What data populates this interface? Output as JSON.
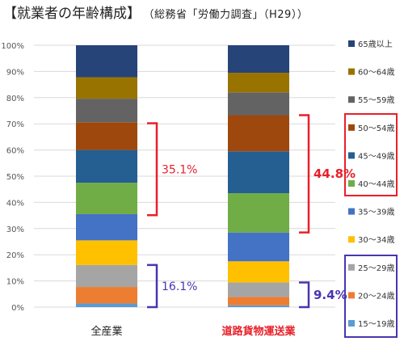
{
  "header": {
    "title": "【就業者の年齢構成】",
    "source": "（総務省「労働力調査」（H29））"
  },
  "colors": {
    "bracket_red": "#e8202a",
    "bracket_blue": "#4a35b0",
    "axis_text": "#555555",
    "grid": "#d9d9d9"
  },
  "chart_data": {
    "type": "bar",
    "stacked": true,
    "percent_scale": true,
    "categories": [
      "全産業",
      "道路貨物運送業"
    ],
    "category_colors": [
      "#222222",
      "#e8202a"
    ],
    "y_ticks": [
      "0%",
      "10%",
      "20%",
      "30%",
      "40%",
      "50%",
      "60%",
      "70%",
      "80%",
      "90%",
      "100%"
    ],
    "ylim": [
      0,
      100
    ],
    "grid": true,
    "legend_position": "right",
    "series": [
      {
        "name": "15〜19歳",
        "color": "#5b9bd5",
        "values": [
          1.4,
          0.7
        ]
      },
      {
        "name": "20〜24歳",
        "color": "#ed7d31",
        "values": [
          6.3,
          3.2
        ]
      },
      {
        "name": "25〜29歳",
        "color": "#a5a5a5",
        "values": [
          8.4,
          5.5
        ]
      },
      {
        "name": "30〜34歳",
        "color": "#ffc000",
        "values": [
          9.4,
          8.1
        ]
      },
      {
        "name": "35〜39歳",
        "color": "#4472c4",
        "values": [
          10.0,
          11.0
        ]
      },
      {
        "name": "40〜44歳",
        "color": "#70ad47",
        "values": [
          12.0,
          15.0
        ]
      },
      {
        "name": "45〜49歳",
        "color": "#255e91",
        "values": [
          12.5,
          16.0
        ]
      },
      {
        "name": "50〜54歳",
        "color": "#9e480e",
        "values": [
          10.6,
          13.8
        ]
      },
      {
        "name": "55〜59歳",
        "color": "#636363",
        "values": [
          9.0,
          8.7
        ]
      },
      {
        "name": "60〜64歳",
        "color": "#997300",
        "values": [
          8.2,
          7.5
        ]
      },
      {
        "name": "65歳以上",
        "color": "#264478",
        "values": [
          12.2,
          10.5
        ]
      }
    ],
    "annotations": [
      {
        "label": "35.1%",
        "category": 0,
        "from": 35.1,
        "to": 70.2,
        "color": "#e8202a",
        "bold": false
      },
      {
        "label": "16.1%",
        "category": 0,
        "from": 0,
        "to": 16.1,
        "color": "#4a35b0",
        "bold": false
      },
      {
        "label": "44.8%",
        "category": 1,
        "from": 28.5,
        "to": 73.3,
        "color": "#e8202a",
        "bold": true
      },
      {
        "label": "9.4%",
        "category": 1,
        "from": 0,
        "to": 9.4,
        "color": "#4a35b0",
        "bold": true
      }
    ]
  }
}
